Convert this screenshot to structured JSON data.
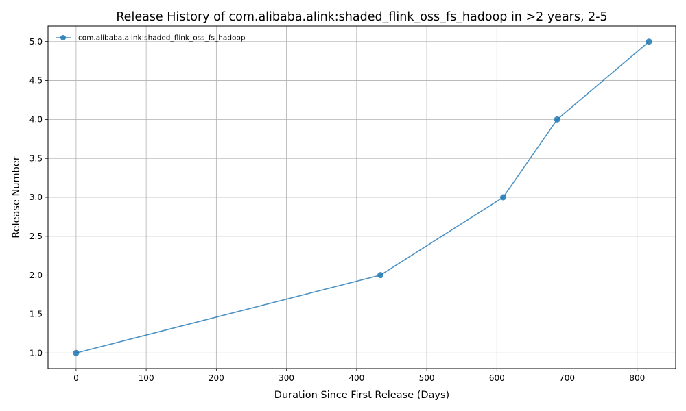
{
  "chart_data": {
    "type": "line",
    "title": "Release History of com.alibaba.alink:shaded_flink_oss_fs_hadoop in >2 years, 2-5",
    "xlabel": "Duration Since First Release (Days)",
    "ylabel": "Release Number",
    "xlim": [
      -40,
      855
    ],
    "ylim": [
      0.8,
      5.2
    ],
    "xticks": [
      0,
      100,
      200,
      300,
      400,
      500,
      600,
      700,
      800
    ],
    "xtick_labels": [
      "0",
      "100",
      "200",
      "300",
      "400",
      "500",
      "600",
      "700",
      "800"
    ],
    "yticks": [
      1.0,
      1.5,
      2.0,
      2.5,
      3.0,
      3.5,
      4.0,
      4.5,
      5.0
    ],
    "ytick_labels": [
      "1.0",
      "1.5",
      "2.0",
      "2.5",
      "3.0",
      "3.5",
      "4.0",
      "4.5",
      "5.0"
    ],
    "grid": true,
    "legend_position": "top-left",
    "series": [
      {
        "name": "com.alibaba.alink:shaded_flink_oss_fs_hadoop",
        "color": "#1f77b4",
        "marker": "circle",
        "x": [
          0,
          434,
          609,
          686,
          817
        ],
        "y": [
          1,
          2,
          3,
          4,
          5
        ]
      }
    ]
  }
}
